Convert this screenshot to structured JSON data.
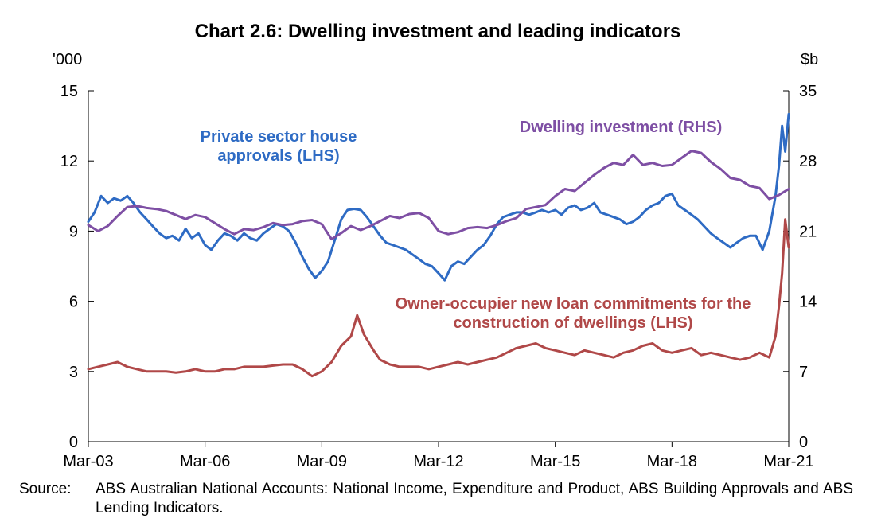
{
  "chart_data": {
    "type": "line",
    "title": "Chart 2.6: Dwelling investment and leading indicators",
    "left_axis": {
      "unit": "'000",
      "range": [
        0,
        15
      ],
      "ticks": [
        0,
        3,
        6,
        9,
        12,
        15
      ]
    },
    "right_axis": {
      "unit": "$b",
      "range": [
        0,
        35
      ],
      "ticks": [
        0,
        7,
        14,
        21,
        28,
        35
      ]
    },
    "x_axis": {
      "range": [
        2003.17,
        2021.17
      ],
      "tick_labels": [
        "Mar-03",
        "Mar-06",
        "Mar-09",
        "Mar-12",
        "Mar-15",
        "Mar-18",
        "Mar-21"
      ],
      "tick_values": [
        2003.17,
        2006.17,
        2009.17,
        2012.17,
        2015.17,
        2018.17,
        2021.17
      ]
    },
    "series": [
      {
        "name": "Private sector house approvals (LHS)",
        "label_lines": [
          "Private sector house",
          "approvals (LHS)"
        ],
        "axis": "left",
        "color": "#2e6bc4",
        "points": [
          [
            2003.17,
            9.4
          ],
          [
            2003.33,
            9.8
          ],
          [
            2003.5,
            10.5
          ],
          [
            2003.67,
            10.2
          ],
          [
            2003.83,
            10.4
          ],
          [
            2004.0,
            10.3
          ],
          [
            2004.17,
            10.5
          ],
          [
            2004.33,
            10.2
          ],
          [
            2004.5,
            9.8
          ],
          [
            2004.67,
            9.5
          ],
          [
            2004.83,
            9.2
          ],
          [
            2005.0,
            8.9
          ],
          [
            2005.17,
            8.7
          ],
          [
            2005.33,
            8.8
          ],
          [
            2005.5,
            8.6
          ],
          [
            2005.67,
            9.1
          ],
          [
            2005.83,
            8.7
          ],
          [
            2006.0,
            8.9
          ],
          [
            2006.17,
            8.4
          ],
          [
            2006.33,
            8.2
          ],
          [
            2006.5,
            8.6
          ],
          [
            2006.67,
            8.9
          ],
          [
            2006.83,
            8.8
          ],
          [
            2007.0,
            8.6
          ],
          [
            2007.17,
            8.9
          ],
          [
            2007.33,
            8.7
          ],
          [
            2007.5,
            8.6
          ],
          [
            2007.67,
            8.9
          ],
          [
            2007.83,
            9.1
          ],
          [
            2008.0,
            9.3
          ],
          [
            2008.17,
            9.2
          ],
          [
            2008.33,
            9.0
          ],
          [
            2008.5,
            8.5
          ],
          [
            2008.67,
            7.9
          ],
          [
            2008.83,
            7.4
          ],
          [
            2009.0,
            7.0
          ],
          [
            2009.17,
            7.3
          ],
          [
            2009.33,
            7.7
          ],
          [
            2009.5,
            8.6
          ],
          [
            2009.67,
            9.5
          ],
          [
            2009.83,
            9.9
          ],
          [
            2010.0,
            9.95
          ],
          [
            2010.17,
            9.9
          ],
          [
            2010.33,
            9.6
          ],
          [
            2010.5,
            9.2
          ],
          [
            2010.67,
            8.8
          ],
          [
            2010.83,
            8.5
          ],
          [
            2011.0,
            8.4
          ],
          [
            2011.17,
            8.3
          ],
          [
            2011.33,
            8.2
          ],
          [
            2011.5,
            8.0
          ],
          [
            2011.67,
            7.8
          ],
          [
            2011.83,
            7.6
          ],
          [
            2012.0,
            7.5
          ],
          [
            2012.17,
            7.2
          ],
          [
            2012.33,
            6.9
          ],
          [
            2012.5,
            7.5
          ],
          [
            2012.67,
            7.7
          ],
          [
            2012.83,
            7.6
          ],
          [
            2013.0,
            7.9
          ],
          [
            2013.17,
            8.2
          ],
          [
            2013.33,
            8.4
          ],
          [
            2013.5,
            8.8
          ],
          [
            2013.67,
            9.3
          ],
          [
            2013.83,
            9.6
          ],
          [
            2014.0,
            9.7
          ],
          [
            2014.17,
            9.8
          ],
          [
            2014.33,
            9.8
          ],
          [
            2014.5,
            9.7
          ],
          [
            2014.67,
            9.8
          ],
          [
            2014.83,
            9.9
          ],
          [
            2015.0,
            9.8
          ],
          [
            2015.17,
            9.9
          ],
          [
            2015.33,
            9.7
          ],
          [
            2015.5,
            10.0
          ],
          [
            2015.67,
            10.1
          ],
          [
            2015.83,
            9.9
          ],
          [
            2016.0,
            10.0
          ],
          [
            2016.17,
            10.2
          ],
          [
            2016.33,
            9.8
          ],
          [
            2016.5,
            9.7
          ],
          [
            2016.67,
            9.6
          ],
          [
            2016.83,
            9.5
          ],
          [
            2017.0,
            9.3
          ],
          [
            2017.17,
            9.4
          ],
          [
            2017.33,
            9.6
          ],
          [
            2017.5,
            9.9
          ],
          [
            2017.67,
            10.1
          ],
          [
            2017.83,
            10.2
          ],
          [
            2018.0,
            10.5
          ],
          [
            2018.17,
            10.6
          ],
          [
            2018.33,
            10.1
          ],
          [
            2018.5,
            9.9
          ],
          [
            2018.67,
            9.7
          ],
          [
            2018.83,
            9.5
          ],
          [
            2019.0,
            9.2
          ],
          [
            2019.17,
            8.9
          ],
          [
            2019.33,
            8.7
          ],
          [
            2019.5,
            8.5
          ],
          [
            2019.67,
            8.3
          ],
          [
            2019.83,
            8.5
          ],
          [
            2020.0,
            8.7
          ],
          [
            2020.17,
            8.8
          ],
          [
            2020.33,
            8.8
          ],
          [
            2020.5,
            8.2
          ],
          [
            2020.67,
            9.0
          ],
          [
            2020.83,
            10.5
          ],
          [
            2020.92,
            11.8
          ],
          [
            2021.0,
            13.5
          ],
          [
            2021.08,
            12.4
          ],
          [
            2021.17,
            14.0
          ]
        ]
      },
      {
        "name": "Dwelling investment (RHS)",
        "label_lines": [
          "Dwelling investment (RHS)"
        ],
        "axis": "right",
        "color": "#7e4fa4",
        "points": [
          [
            2003.17,
            21.6
          ],
          [
            2003.42,
            21.0
          ],
          [
            2003.67,
            21.5
          ],
          [
            2003.92,
            22.5
          ],
          [
            2004.17,
            23.4
          ],
          [
            2004.42,
            23.5
          ],
          [
            2004.67,
            23.3
          ],
          [
            2004.92,
            23.2
          ],
          [
            2005.17,
            23.0
          ],
          [
            2005.42,
            22.6
          ],
          [
            2005.67,
            22.2
          ],
          [
            2005.92,
            22.6
          ],
          [
            2006.17,
            22.4
          ],
          [
            2006.42,
            21.8
          ],
          [
            2006.67,
            21.2
          ],
          [
            2006.92,
            20.7
          ],
          [
            2007.17,
            21.2
          ],
          [
            2007.42,
            21.1
          ],
          [
            2007.67,
            21.4
          ],
          [
            2007.92,
            21.8
          ],
          [
            2008.17,
            21.6
          ],
          [
            2008.42,
            21.7
          ],
          [
            2008.67,
            22.0
          ],
          [
            2008.92,
            22.1
          ],
          [
            2009.17,
            21.7
          ],
          [
            2009.42,
            20.2
          ],
          [
            2009.67,
            20.8
          ],
          [
            2009.92,
            21.5
          ],
          [
            2010.17,
            21.1
          ],
          [
            2010.42,
            21.5
          ],
          [
            2010.67,
            22.0
          ],
          [
            2010.92,
            22.5
          ],
          [
            2011.17,
            22.3
          ],
          [
            2011.42,
            22.7
          ],
          [
            2011.67,
            22.8
          ],
          [
            2011.92,
            22.3
          ],
          [
            2012.17,
            21.0
          ],
          [
            2012.42,
            20.7
          ],
          [
            2012.67,
            20.9
          ],
          [
            2012.92,
            21.3
          ],
          [
            2013.17,
            21.4
          ],
          [
            2013.42,
            21.3
          ],
          [
            2013.67,
            21.6
          ],
          [
            2013.92,
            22.0
          ],
          [
            2014.17,
            22.3
          ],
          [
            2014.42,
            23.2
          ],
          [
            2014.67,
            23.4
          ],
          [
            2014.92,
            23.6
          ],
          [
            2015.17,
            24.5
          ],
          [
            2015.42,
            25.2
          ],
          [
            2015.67,
            25.0
          ],
          [
            2015.92,
            25.8
          ],
          [
            2016.17,
            26.6
          ],
          [
            2016.42,
            27.3
          ],
          [
            2016.67,
            27.8
          ],
          [
            2016.92,
            27.6
          ],
          [
            2017.17,
            28.6
          ],
          [
            2017.42,
            27.6
          ],
          [
            2017.67,
            27.8
          ],
          [
            2017.92,
            27.5
          ],
          [
            2018.17,
            27.6
          ],
          [
            2018.42,
            28.3
          ],
          [
            2018.67,
            29.0
          ],
          [
            2018.92,
            28.8
          ],
          [
            2019.17,
            27.9
          ],
          [
            2019.42,
            27.2
          ],
          [
            2019.67,
            26.3
          ],
          [
            2019.92,
            26.1
          ],
          [
            2020.17,
            25.5
          ],
          [
            2020.42,
            25.3
          ],
          [
            2020.67,
            24.2
          ],
          [
            2020.92,
            24.6
          ],
          [
            2021.17,
            25.2
          ]
        ]
      },
      {
        "name": "Owner-occupier new loan commitments for the construction of dwellings (LHS)",
        "label_lines": [
          "Owner-occupier new loan commitments for the",
          "construction of dwellings (LHS)"
        ],
        "axis": "left",
        "color": "#b04848",
        "points": [
          [
            2003.17,
            3.1
          ],
          [
            2003.42,
            3.2
          ],
          [
            2003.67,
            3.3
          ],
          [
            2003.92,
            3.4
          ],
          [
            2004.17,
            3.2
          ],
          [
            2004.42,
            3.1
          ],
          [
            2004.67,
            3.0
          ],
          [
            2004.92,
            3.0
          ],
          [
            2005.17,
            3.0
          ],
          [
            2005.42,
            2.95
          ],
          [
            2005.67,
            3.0
          ],
          [
            2005.92,
            3.1
          ],
          [
            2006.17,
            3.0
          ],
          [
            2006.42,
            3.0
          ],
          [
            2006.67,
            3.1
          ],
          [
            2006.92,
            3.1
          ],
          [
            2007.17,
            3.2
          ],
          [
            2007.42,
            3.2
          ],
          [
            2007.67,
            3.2
          ],
          [
            2007.92,
            3.25
          ],
          [
            2008.17,
            3.3
          ],
          [
            2008.42,
            3.3
          ],
          [
            2008.67,
            3.1
          ],
          [
            2008.92,
            2.8
          ],
          [
            2009.17,
            3.0
          ],
          [
            2009.42,
            3.4
          ],
          [
            2009.67,
            4.1
          ],
          [
            2009.92,
            4.5
          ],
          [
            2010.08,
            5.4
          ],
          [
            2010.25,
            4.6
          ],
          [
            2010.5,
            3.9
          ],
          [
            2010.67,
            3.5
          ],
          [
            2010.92,
            3.3
          ],
          [
            2011.17,
            3.2
          ],
          [
            2011.42,
            3.2
          ],
          [
            2011.67,
            3.2
          ],
          [
            2011.92,
            3.1
          ],
          [
            2012.17,
            3.2
          ],
          [
            2012.42,
            3.3
          ],
          [
            2012.67,
            3.4
          ],
          [
            2012.92,
            3.3
          ],
          [
            2013.17,
            3.4
          ],
          [
            2013.42,
            3.5
          ],
          [
            2013.67,
            3.6
          ],
          [
            2013.92,
            3.8
          ],
          [
            2014.17,
            4.0
          ],
          [
            2014.42,
            4.1
          ],
          [
            2014.67,
            4.2
          ],
          [
            2014.92,
            4.0
          ],
          [
            2015.17,
            3.9
          ],
          [
            2015.42,
            3.8
          ],
          [
            2015.67,
            3.7
          ],
          [
            2015.92,
            3.9
          ],
          [
            2016.17,
            3.8
          ],
          [
            2016.42,
            3.7
          ],
          [
            2016.67,
            3.6
          ],
          [
            2016.92,
            3.8
          ],
          [
            2017.17,
            3.9
          ],
          [
            2017.42,
            4.1
          ],
          [
            2017.67,
            4.2
          ],
          [
            2017.92,
            3.9
          ],
          [
            2018.17,
            3.8
          ],
          [
            2018.42,
            3.9
          ],
          [
            2018.67,
            4.0
          ],
          [
            2018.92,
            3.7
          ],
          [
            2019.17,
            3.8
          ],
          [
            2019.42,
            3.7
          ],
          [
            2019.67,
            3.6
          ],
          [
            2019.92,
            3.5
          ],
          [
            2020.17,
            3.6
          ],
          [
            2020.42,
            3.8
          ],
          [
            2020.67,
            3.6
          ],
          [
            2020.83,
            4.5
          ],
          [
            2020.92,
            5.8
          ],
          [
            2021.0,
            7.2
          ],
          [
            2021.08,
            9.5
          ],
          [
            2021.17,
            8.3
          ]
        ]
      }
    ]
  },
  "source": {
    "label": "Source:",
    "text": "ABS Australian National Accounts: National Income, Expenditure and Product, ABS Building Approvals and ABS Lending Indicators."
  }
}
